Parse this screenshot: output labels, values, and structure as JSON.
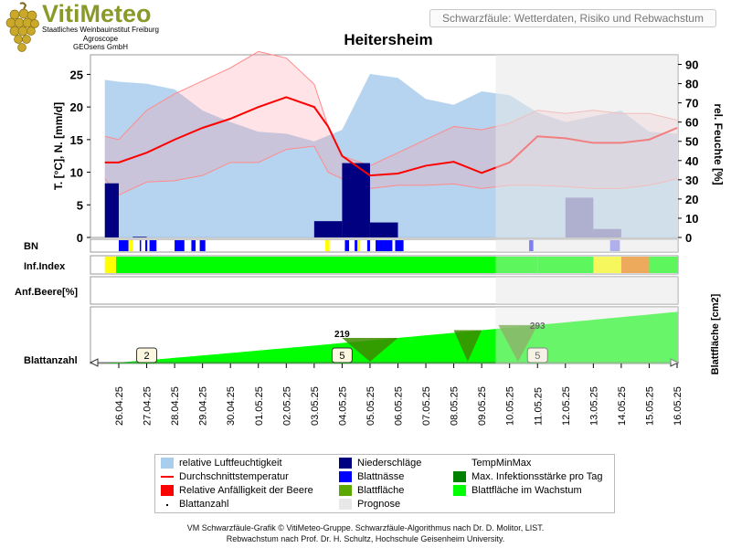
{
  "header": {
    "brand": "VitiMeteo",
    "institutions": [
      "Staatliches Weinbauinstitut Freiburg",
      "Agroscope",
      "GEOsens GmbH"
    ],
    "subtitle": "Schwarzfäule: Wetterdaten, Risiko und Rebwachstum",
    "station": "Heitersheim"
  },
  "footer": {
    "line1": "VM Schwarzfäule-Grafik © VitiMeteo-Gruppe. Schwarzfäule-Algorithmus nach Dr. D. Molitor, LIST.",
    "line2": "Rebwachstum nach Prof. Dr. H. Schultz, Hochschule Geisenheim University."
  },
  "legend": [
    {
      "label": "relative Luftfeuchtigkeit",
      "color": "#a9cdec",
      "kind": "box"
    },
    {
      "label": "Niederschläge",
      "color": "#000080",
      "kind": "box"
    },
    {
      "label": "TempMinMax",
      "color": "#ffffff",
      "kind": "none"
    },
    {
      "label": "Durchschnittstemperatur",
      "color": "#ff0000",
      "kind": "line"
    },
    {
      "label": "Blattnässe",
      "color": "#0000ff",
      "kind": "box"
    },
    {
      "label": "Max. Infektionsstärke pro Tag",
      "color": "#008000",
      "kind": "box"
    },
    {
      "label": "Relative Anfälligkeit der Beere",
      "color": "#ff0000",
      "kind": "box"
    },
    {
      "label": "Blattfläche",
      "color": "#5aa800",
      "kind": "box"
    },
    {
      "label": "Blattfläche im Wachstum",
      "color": "#00ff00",
      "kind": "box"
    },
    {
      "label": "Blattanzahl",
      "color": "#000000",
      "kind": "dot"
    },
    {
      "label": "Prognose",
      "color": "#e8e8e8",
      "kind": "box"
    }
  ],
  "chart_data": {
    "type": "line",
    "dates": [
      "26.04.25",
      "27.04.25",
      "28.04.25",
      "29.04.25",
      "30.04.25",
      "01.05.25",
      "02.05.25",
      "03.05.25",
      "04.05.25",
      "05.05.25",
      "06.05.25",
      "07.05.25",
      "08.05.25",
      "09.05.25",
      "10.05.25",
      "11.05.25",
      "12.05.25",
      "13.05.25",
      "14.05.25",
      "15.05.25",
      "16.05.25"
    ],
    "forecast_start": "09.05.25",
    "left_axis": {
      "label": "T. [°C], N. [mm/d]",
      "ticks": [
        0,
        5,
        10,
        15,
        20,
        25
      ],
      "range": [
        0,
        28
      ]
    },
    "right_axis": {
      "label": "rel. Feuchte [%]",
      "ticks": [
        0,
        10,
        20,
        30,
        40,
        50,
        60,
        70,
        80,
        90
      ],
      "range": [
        0,
        95
      ]
    },
    "temp_x": [
      -0.5,
      0,
      1,
      2,
      3,
      4,
      5,
      6,
      7,
      7.5,
      8,
      9,
      10,
      11,
      12,
      13,
      14,
      15,
      16,
      17,
      18,
      19,
      20
    ],
    "temp_avg": [
      11.5,
      11.5,
      13,
      15,
      16.8,
      18.2,
      20,
      21.5,
      20,
      17,
      12.5,
      9.5,
      9.8,
      11,
      11.6,
      9.9,
      11.5,
      15.5,
      15.2,
      14.5,
      14.5,
      15,
      16.8
    ],
    "temp_min": [
      9,
      6.5,
      8.5,
      8.7,
      9.5,
      11.5,
      11.5,
      13.5,
      14,
      10,
      9,
      7.5,
      8,
      8,
      8.2,
      7.5,
      8,
      8,
      7.8,
      7.5,
      7.5,
      8,
      9
    ],
    "temp_max": [
      15.5,
      15,
      19.5,
      22,
      24,
      26,
      28.5,
      27.5,
      23.5,
      17,
      12.5,
      11,
      13,
      15,
      17,
      16.5,
      17.5,
      19.5,
      19,
      19.5,
      19,
      19,
      18
    ],
    "humidity_x": [
      -0.5,
      0,
      1,
      2,
      3,
      4,
      5,
      6,
      7,
      8,
      9,
      10,
      11,
      12,
      13,
      14,
      15,
      16,
      17,
      18,
      19,
      20
    ],
    "humidity": [
      82,
      81,
      80,
      77,
      66,
      60,
      55,
      54,
      50,
      56,
      85,
      83,
      72,
      69,
      76,
      74,
      65,
      60,
      63,
      66,
      55,
      54
    ],
    "rain_x": [
      -0.5,
      0.5,
      7,
      8,
      9,
      10,
      16,
      17
    ],
    "rain_dx": [
      0.5,
      0.5,
      1,
      1,
      1,
      1,
      1,
      1
    ],
    "rain": [
      8.3,
      0.1,
      2.5,
      11.4,
      2.3,
      0,
      6.1,
      1.3
    ],
    "leaf_count_labels": [
      {
        "x": 1,
        "label": "2"
      },
      {
        "x": 8,
        "label": "5"
      },
      {
        "x": 15,
        "label": "5"
      }
    ],
    "leaf_area_labels": [
      {
        "x": 8,
        "label": "219"
      },
      {
        "x": 15,
        "label": "293"
      }
    ],
    "row_labels": {
      "bn": "BN",
      "inf": "Inf.Index",
      "anf": "Anf.Beere[%]",
      "blatt": "Blattanzahl",
      "area_axis": "Blattfläche [cm2]"
    },
    "bn_segments": [
      [
        0,
        0.35
      ],
      [
        0.75,
        0.8
      ],
      [
        0.95,
        1.02
      ],
      [
        1.1,
        1.35
      ],
      [
        2.0,
        2.35
      ],
      [
        2.6,
        2.75
      ],
      [
        2.9,
        3.1
      ],
      [
        8.1,
        8.25
      ],
      [
        8.45,
        8.55
      ],
      [
        8.9,
        9.0
      ],
      [
        9.2,
        9.8
      ],
      [
        9.9,
        10.2
      ],
      [
        14.7,
        14.85
      ],
      [
        17.6,
        17.95
      ]
    ],
    "bn_yellow": [
      [
        0.35,
        0.5
      ],
      [
        7.4,
        7.55
      ],
      [
        8.55,
        8.65
      ]
    ],
    "inf_index": [
      {
        "from": -0.5,
        "to": -0.1,
        "color": "#ffff00"
      },
      {
        "from": -0.1,
        "to": 15,
        "color": "#00ff00"
      },
      {
        "from": 15,
        "to": 17,
        "color": "#00ff00"
      },
      {
        "from": 17,
        "to": 18,
        "color": "#ffff00"
      },
      {
        "from": 18,
        "to": 19,
        "color": "#f08000"
      },
      {
        "from": 19,
        "to": 20.5,
        "color": "#00ff00"
      }
    ]
  }
}
